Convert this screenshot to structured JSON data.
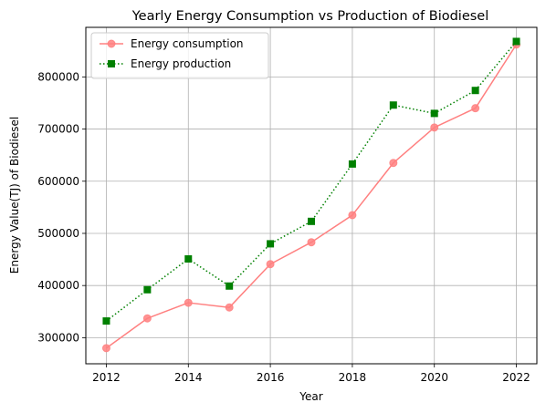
{
  "chart_data": {
    "type": "line",
    "title": "Yearly Energy Consumption vs Production of Biodiesel",
    "xlabel": "Year",
    "ylabel": "Energy Value(TJ) of Biodiesel",
    "x": [
      2012,
      2013,
      2014,
      2015,
      2016,
      2017,
      2018,
      2019,
      2020,
      2021,
      2022
    ],
    "xlim": [
      2011.5,
      2022.5
    ],
    "ylim": [
      250000,
      895000
    ],
    "xticks": [
      2012,
      2014,
      2016,
      2018,
      2020,
      2022
    ],
    "yticks": [
      300000,
      400000,
      500000,
      600000,
      700000,
      800000
    ],
    "xtick_labels": [
      "2012",
      "2014",
      "2016",
      "2018",
      "2020",
      "2022"
    ],
    "ytick_labels": [
      "300000",
      "400000",
      "500000",
      "600000",
      "700000",
      "800000"
    ],
    "grid": true,
    "legend_position": "top-left",
    "series": [
      {
        "name": "Energy consumption",
        "color": "#ff8080",
        "line_style": "solid",
        "marker": "circle",
        "values": [
          280000,
          337000,
          367000,
          358000,
          441000,
          483000,
          535000,
          635000,
          703000,
          740000,
          862000
        ]
      },
      {
        "name": "Energy production",
        "color": "#008000",
        "line_style": "dotted",
        "marker": "square",
        "values": [
          332000,
          392000,
          451000,
          399000,
          480000,
          523000,
          633000,
          746000,
          730000,
          774000,
          868000
        ]
      }
    ]
  }
}
